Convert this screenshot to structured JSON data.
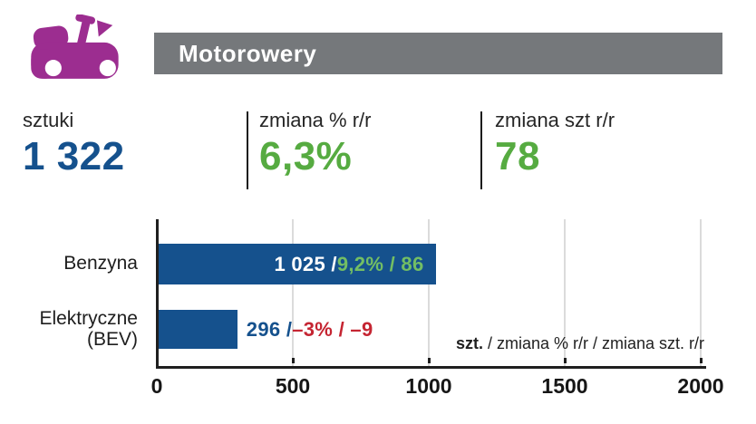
{
  "header": {
    "title": "Motorowery"
  },
  "icon": {
    "name": "scooter",
    "color": "#9C2D90"
  },
  "stats": [
    {
      "label": "sztuki",
      "value": "1 322",
      "color": "#15518D"
    },
    {
      "label": "zmiana % r/r",
      "value": "6,3%",
      "color": "#56AB41"
    },
    {
      "label": "zmiana szt r/r",
      "value": "78",
      "color": "#56AB41"
    }
  ],
  "chart_data": {
    "type": "bar",
    "orientation": "horizontal",
    "title": "Motorowery",
    "categories": [
      "Benzyna",
      "Elektryczne (BEV)"
    ],
    "series": [
      {
        "name": "szt.",
        "values": [
          1025,
          296
        ]
      },
      {
        "name": "zmiana % r/r",
        "values": [
          9.2,
          -3
        ]
      },
      {
        "name": "zmiana szt. r/r",
        "values": [
          86,
          -9
        ]
      }
    ],
    "bars": [
      {
        "category_lines": [
          "Benzyna"
        ],
        "value": 1025,
        "value_text": "1 025",
        "change_text": "9,2% / 86",
        "label_position": "inside",
        "change_positive": true
      },
      {
        "category_lines": [
          "Elektryczne",
          "(BEV)"
        ],
        "value": 296,
        "value_text": "296",
        "change_text": "–3% / –9",
        "label_position": "outside",
        "change_positive": false
      }
    ],
    "xlim": [
      0,
      2000
    ],
    "x_ticks": [
      "0",
      "500",
      "1000",
      "1500",
      "2000"
    ],
    "note": {
      "bold": "szt.",
      "rest": " / zmiana % r/r / zmiana szt. r/r"
    },
    "grid": true,
    "legend_position": "none",
    "bar_color": "#15518D",
    "colors": {
      "bar": "#15518D",
      "positive_change": "#73BE64",
      "negative_change": "#C52532",
      "value_inside": "#FFFFFF",
      "value_outside": "#15518D",
      "gridline": "#DBDBDB",
      "axis": "#1F1F1F"
    }
  }
}
